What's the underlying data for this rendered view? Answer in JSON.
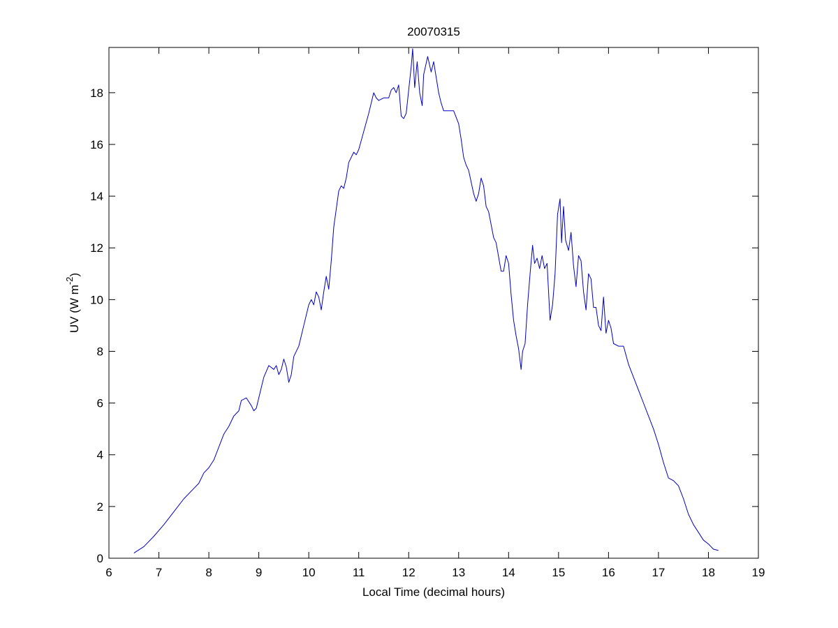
{
  "chart_data": {
    "type": "line",
    "title": "20070315",
    "xlabel": "Local Time (decimal hours)",
    "ylabel_parts": [
      "UV (W m",
      "-2",
      ")"
    ],
    "color": "#0000c0",
    "xlim": [
      6,
      19
    ],
    "xticks": [
      6,
      7,
      8,
      9,
      10,
      11,
      12,
      13,
      14,
      15,
      16,
      17,
      18,
      19
    ],
    "ylim": [
      0,
      19.75
    ],
    "yticks": [
      0,
      2,
      4,
      6,
      8,
      10,
      12,
      14,
      16,
      18
    ],
    "x": [
      6.5,
      6.7,
      6.9,
      7.1,
      7.3,
      7.5,
      7.7,
      7.8,
      7.9,
      8.0,
      8.1,
      8.2,
      8.3,
      8.4,
      8.5,
      8.6,
      8.65,
      8.75,
      8.85,
      8.9,
      8.95,
      9.05,
      9.1,
      9.2,
      9.3,
      9.35,
      9.4,
      9.45,
      9.5,
      9.55,
      9.6,
      9.65,
      9.7,
      9.8,
      9.9,
      9.95,
      10.0,
      10.05,
      10.1,
      10.15,
      10.2,
      10.25,
      10.3,
      10.35,
      10.4,
      10.45,
      10.5,
      10.55,
      10.6,
      10.65,
      10.7,
      10.75,
      10.8,
      10.9,
      10.95,
      11.0,
      11.1,
      11.2,
      11.3,
      11.35,
      11.4,
      11.5,
      11.6,
      11.65,
      11.7,
      11.75,
      11.8,
      11.85,
      11.9,
      11.95,
      12.0,
      12.05,
      12.08,
      12.12,
      12.17,
      12.22,
      12.27,
      12.3,
      12.38,
      12.45,
      12.5,
      12.55,
      12.6,
      12.65,
      12.7,
      12.8,
      12.9,
      13.0,
      13.05,
      13.1,
      13.15,
      13.2,
      13.3,
      13.35,
      13.4,
      13.45,
      13.5,
      13.55,
      13.6,
      13.7,
      13.75,
      13.85,
      13.9,
      13.95,
      14.0,
      14.05,
      14.1,
      14.15,
      14.2,
      14.25,
      14.28,
      14.33,
      14.38,
      14.43,
      14.48,
      14.52,
      14.57,
      14.62,
      14.67,
      14.72,
      14.77,
      14.83,
      14.88,
      14.93,
      14.98,
      15.03,
      15.06,
      15.1,
      15.14,
      15.2,
      15.25,
      15.3,
      15.35,
      15.4,
      15.45,
      15.5,
      15.55,
      15.6,
      15.65,
      15.7,
      15.75,
      15.8,
      15.85,
      15.9,
      15.95,
      16.0,
      16.05,
      16.1,
      16.2,
      16.3,
      16.4,
      16.5,
      16.6,
      16.7,
      16.8,
      16.9,
      17.0,
      17.1,
      17.2,
      17.3,
      17.4,
      17.5,
      17.6,
      17.7,
      17.8,
      17.9,
      18.0,
      18.1,
      18.2
    ],
    "values": [
      0.2,
      0.45,
      0.85,
      1.3,
      1.8,
      2.3,
      2.7,
      2.9,
      3.3,
      3.5,
      3.8,
      4.3,
      4.8,
      5.1,
      5.5,
      5.7,
      6.1,
      6.2,
      5.9,
      5.7,
      5.8,
      6.6,
      7.0,
      7.45,
      7.3,
      7.45,
      7.1,
      7.3,
      7.7,
      7.4,
      6.8,
      7.1,
      7.8,
      8.2,
      9.0,
      9.4,
      9.8,
      10.0,
      9.8,
      10.3,
      10.1,
      9.6,
      10.3,
      10.9,
      10.4,
      11.5,
      12.8,
      13.5,
      14.2,
      14.4,
      14.3,
      14.7,
      15.3,
      15.7,
      15.6,
      15.8,
      16.5,
      17.2,
      18.0,
      17.8,
      17.7,
      17.8,
      17.8,
      18.1,
      18.2,
      18.0,
      18.3,
      17.1,
      17.0,
      17.2,
      18.1,
      19.0,
      19.7,
      18.2,
      19.2,
      18.0,
      17.5,
      18.7,
      19.4,
      18.8,
      19.2,
      18.6,
      18.0,
      17.6,
      17.3,
      17.3,
      17.3,
      16.8,
      16.2,
      15.5,
      15.2,
      15.0,
      14.1,
      13.8,
      14.1,
      14.7,
      14.4,
      13.6,
      13.4,
      12.4,
      12.2,
      11.1,
      11.1,
      11.7,
      11.4,
      10.2,
      9.2,
      8.6,
      8.1,
      7.3,
      8.0,
      8.3,
      9.8,
      11.0,
      12.1,
      11.4,
      11.6,
      11.2,
      11.7,
      11.2,
      11.4,
      9.2,
      9.8,
      11.0,
      13.3,
      13.9,
      12.2,
      13.6,
      12.3,
      11.9,
      12.6,
      11.3,
      10.5,
      11.7,
      11.5,
      10.3,
      9.6,
      11.0,
      10.8,
      9.7,
      9.7,
      9.0,
      8.8,
      10.1,
      8.7,
      9.2,
      8.9,
      8.3,
      8.2,
      8.2,
      7.5,
      7.0,
      6.5,
      6.0,
      5.5,
      5.0,
      4.4,
      3.7,
      3.1,
      3.0,
      2.8,
      2.3,
      1.7,
      1.3,
      1.0,
      0.7,
      0.55,
      0.35,
      0.3
    ]
  }
}
